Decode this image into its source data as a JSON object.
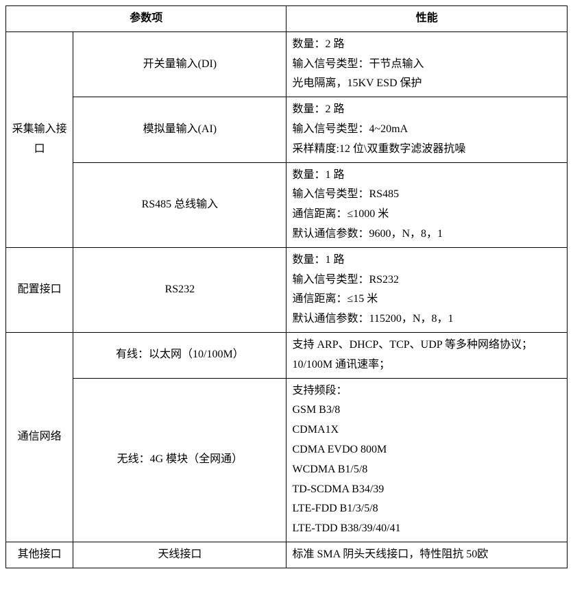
{
  "table": {
    "headers": {
      "param": "参数项",
      "performance": "性能"
    },
    "categories": [
      {
        "name": "采集输入接口",
        "rows": [
          {
            "param": "开关量输入(DI)",
            "perf": [
              "数量：2 路",
              "输入信号类型：干节点输入",
              "光电隔离，15KV ESD 保护"
            ]
          },
          {
            "param": "模拟量输入(AI)",
            "perf": [
              "数量：2 路",
              "输入信号类型：4~20mA",
              "采样精度:12 位\\双重数字滤波器抗噪"
            ]
          },
          {
            "param": "RS485 总线输入",
            "perf": [
              "数量：1 路",
              "输入信号类型：RS485",
              "通信距离：≤1000 米",
              "默认通信参数：9600，N，8，1"
            ]
          }
        ]
      },
      {
        "name": "配置接口",
        "rows": [
          {
            "param": "RS232",
            "perf": [
              "数量：1 路",
              "输入信号类型：RS232",
              "通信距离：≤15 米",
              "默认通信参数：115200，N，8，1"
            ]
          }
        ]
      },
      {
        "name": "通信网络",
        "rows": [
          {
            "param": "有线：以太网（10/100M）",
            "perf": [
              "支持 ARP、DHCP、TCP、UDP 等多种网络协议；",
              "10/100M 通讯速率；"
            ]
          },
          {
            "param": "无线：4G 模块（全网通）",
            "perf": [
              "支持频段：",
              "GSM B3/8",
              "CDMA1X",
              "CDMA EVDO 800M",
              "WCDMA B1/5/8",
              "TD-SCDMA B34/39",
              "LTE-FDD B1/3/5/8",
              "LTE-TDD B38/39/40/41"
            ]
          }
        ]
      },
      {
        "name": "其他接口",
        "rows": [
          {
            "param": "天线接口",
            "perf": [
              "标准 SMA 阴头天线接口，特性阻抗 50欧"
            ]
          }
        ]
      }
    ]
  },
  "styling": {
    "font_family": "SimSun",
    "font_size_pt": 12,
    "border_color": "#000000",
    "background_color": "#ffffff",
    "text_color": "#000000",
    "line_height": 1.8,
    "column_widths_pct": [
      12,
      38,
      50
    ]
  }
}
